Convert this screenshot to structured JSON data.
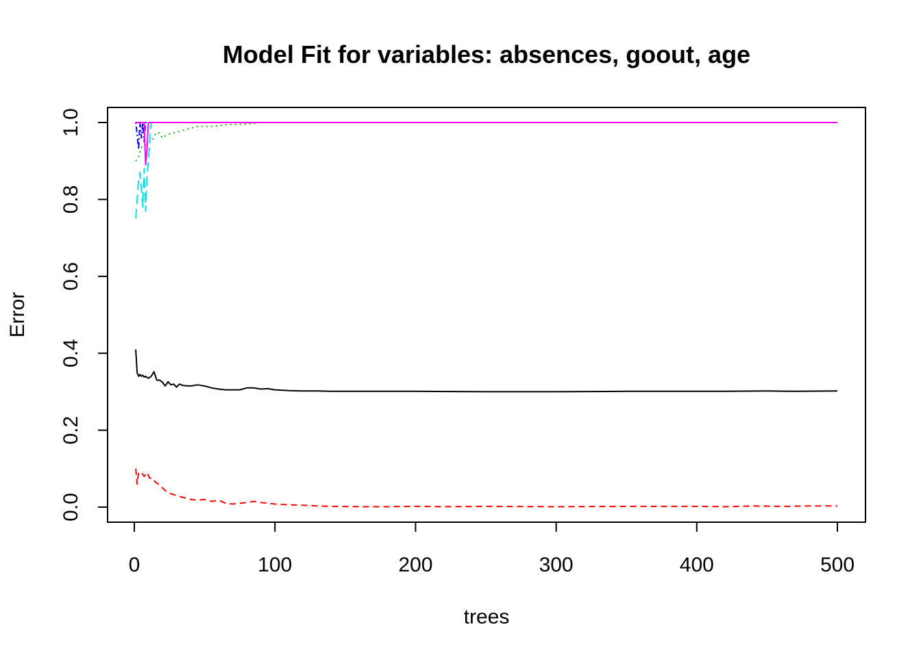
{
  "chart_data": {
    "type": "line",
    "title": "Model Fit for variables: absences, goout, age",
    "xlabel": "trees",
    "ylabel": "Error",
    "xlim": [
      0,
      500
    ],
    "ylim": [
      0,
      1.0
    ],
    "x_ticks": [
      "0",
      "100",
      "200",
      "300",
      "400",
      "500"
    ],
    "y_ticks": [
      "0.0",
      "0.2",
      "0.4",
      "0.6",
      "0.8",
      "1.0"
    ],
    "grid": false,
    "legend": "none",
    "series": [
      {
        "color": "#000000",
        "dash": "solid",
        "points": [
          [
            1,
            0.41
          ],
          [
            2,
            0.35
          ],
          [
            3,
            0.34
          ],
          [
            4,
            0.345
          ],
          [
            5,
            0.34
          ],
          [
            6,
            0.343
          ],
          [
            7,
            0.338
          ],
          [
            8,
            0.34
          ],
          [
            10,
            0.335
          ],
          [
            12,
            0.34
          ],
          [
            14,
            0.352
          ],
          [
            16,
            0.33
          ],
          [
            18,
            0.33
          ],
          [
            20,
            0.325
          ],
          [
            22,
            0.315
          ],
          [
            24,
            0.326
          ],
          [
            26,
            0.318
          ],
          [
            28,
            0.32
          ],
          [
            30,
            0.312
          ],
          [
            32,
            0.32
          ],
          [
            35,
            0.316
          ],
          [
            40,
            0.315
          ],
          [
            45,
            0.318
          ],
          [
            50,
            0.315
          ],
          [
            55,
            0.31
          ],
          [
            60,
            0.307
          ],
          [
            65,
            0.305
          ],
          [
            70,
            0.305
          ],
          [
            75,
            0.305
          ],
          [
            80,
            0.31
          ],
          [
            85,
            0.31
          ],
          [
            90,
            0.307
          ],
          [
            95,
            0.308
          ],
          [
            100,
            0.305
          ],
          [
            110,
            0.303
          ],
          [
            120,
            0.302
          ],
          [
            130,
            0.302
          ],
          [
            140,
            0.301
          ],
          [
            150,
            0.301
          ],
          [
            200,
            0.301
          ],
          [
            250,
            0.3
          ],
          [
            300,
            0.3
          ],
          [
            350,
            0.301
          ],
          [
            400,
            0.301
          ],
          [
            420,
            0.301
          ],
          [
            450,
            0.302
          ],
          [
            470,
            0.301
          ],
          [
            500,
            0.302
          ]
        ]
      },
      {
        "color": "#ff0000",
        "dash": "dashed",
        "points": [
          [
            1,
            0.1
          ],
          [
            2,
            0.06
          ],
          [
            3,
            0.09
          ],
          [
            5,
            0.09
          ],
          [
            7,
            0.08
          ],
          [
            9,
            0.09
          ],
          [
            11,
            0.075
          ],
          [
            13,
            0.075
          ],
          [
            15,
            0.065
          ],
          [
            17,
            0.06
          ],
          [
            20,
            0.05
          ],
          [
            23,
            0.04
          ],
          [
            26,
            0.035
          ],
          [
            30,
            0.03
          ],
          [
            35,
            0.025
          ],
          [
            40,
            0.02
          ],
          [
            45,
            0.018
          ],
          [
            50,
            0.02
          ],
          [
            55,
            0.015
          ],
          [
            60,
            0.018
          ],
          [
            65,
            0.01
          ],
          [
            70,
            0.008
          ],
          [
            75,
            0.01
          ],
          [
            80,
            0.012
          ],
          [
            85,
            0.015
          ],
          [
            90,
            0.012
          ],
          [
            95,
            0.01
          ],
          [
            100,
            0.008
          ],
          [
            110,
            0.006
          ],
          [
            120,
            0.005
          ],
          [
            130,
            0.003
          ],
          [
            140,
            0.002
          ],
          [
            160,
            0.001
          ],
          [
            180,
            0.001
          ],
          [
            200,
            0.002
          ],
          [
            220,
            0.001
          ],
          [
            250,
            0.002
          ],
          [
            300,
            0.001
          ],
          [
            350,
            0.002
          ],
          [
            400,
            0.002
          ],
          [
            420,
            0.001
          ],
          [
            440,
            0.003
          ],
          [
            460,
            0.002
          ],
          [
            480,
            0.003
          ],
          [
            500,
            0.003
          ]
        ]
      },
      {
        "color": "#00bb00",
        "dash": "dotted",
        "points": [
          [
            1,
            0.9
          ],
          [
            3,
            0.91
          ],
          [
            5,
            0.935
          ],
          [
            7,
            0.94
          ],
          [
            9,
            0.945
          ],
          [
            11,
            0.95
          ],
          [
            13,
            0.955
          ],
          [
            15,
            0.97
          ],
          [
            17,
            0.975
          ],
          [
            20,
            0.96
          ],
          [
            22,
            0.965
          ],
          [
            25,
            0.97
          ],
          [
            30,
            0.975
          ],
          [
            35,
            0.98
          ],
          [
            40,
            0.985
          ],
          [
            45,
            0.99
          ],
          [
            55,
            0.99
          ],
          [
            60,
            0.992
          ],
          [
            65,
            0.994
          ],
          [
            70,
            0.995
          ],
          [
            75,
            0.995
          ],
          [
            80,
            0.996
          ],
          [
            90,
            1.0
          ],
          [
            500,
            1.0
          ]
        ]
      },
      {
        "color": "#0000ff",
        "dash": "dashdot",
        "points": [
          [
            1,
            1.0
          ],
          [
            2,
            0.97
          ],
          [
            3,
            0.93
          ],
          [
            4,
            1.0
          ],
          [
            5,
            0.96
          ],
          [
            6,
            1.0
          ],
          [
            7,
            0.95
          ],
          [
            8,
            1.0
          ],
          [
            500,
            1.0
          ]
        ]
      },
      {
        "color": "#00e5ee",
        "dash": "longdash",
        "points": [
          [
            1,
            0.75
          ],
          [
            2,
            0.8
          ],
          [
            3,
            0.85
          ],
          [
            4,
            0.87
          ],
          [
            5,
            0.83
          ],
          [
            6,
            0.78
          ],
          [
            7,
            0.88
          ],
          [
            8,
            0.77
          ],
          [
            9,
            0.86
          ],
          [
            10,
            0.9
          ],
          [
            11,
            0.95
          ],
          [
            12,
            1.0
          ],
          [
            500,
            1.0
          ]
        ]
      },
      {
        "color": "#ff00ff",
        "dash": "solid",
        "points": [
          [
            1,
            1.0
          ],
          [
            7,
            1.0
          ],
          [
            8,
            0.89
          ],
          [
            9,
            0.93
          ],
          [
            10,
            1.0
          ],
          [
            500,
            1.0
          ]
        ]
      }
    ]
  }
}
